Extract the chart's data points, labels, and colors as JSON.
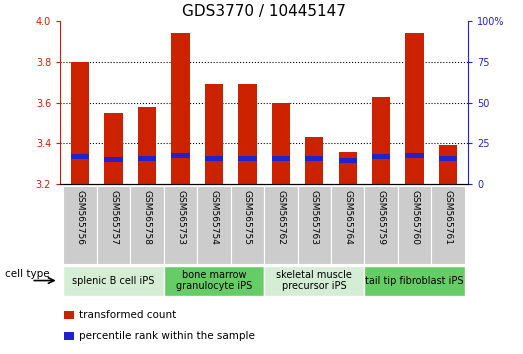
{
  "title": "GDS3770 / 10445147",
  "samples": [
    "GSM565756",
    "GSM565757",
    "GSM565758",
    "GSM565753",
    "GSM565754",
    "GSM565755",
    "GSM565762",
    "GSM565763",
    "GSM565764",
    "GSM565759",
    "GSM565760",
    "GSM565761"
  ],
  "transformed_counts": [
    3.8,
    3.55,
    3.58,
    3.94,
    3.69,
    3.69,
    3.6,
    3.43,
    3.36,
    3.63,
    3.94,
    3.39
  ],
  "percentile_values": [
    3.325,
    3.31,
    3.315,
    3.33,
    3.315,
    3.315,
    3.315,
    3.315,
    3.305,
    3.325,
    3.33,
    3.315
  ],
  "ymin": 3.2,
  "ymax": 4.0,
  "y2min": 0,
  "y2max": 100,
  "yticks": [
    3.2,
    3.4,
    3.6,
    3.8,
    4.0
  ],
  "y2ticks": [
    0,
    25,
    50,
    75,
    100
  ],
  "bar_color": "#cc2200",
  "percentile_color": "#2222cc",
  "cell_type_groups": [
    {
      "label": "splenic B cell iPS",
      "start": 0,
      "end": 3,
      "color": "#d4edd4"
    },
    {
      "label": "bone marrow\ngranulocyte iPS",
      "start": 3,
      "end": 6,
      "color": "#66cc66"
    },
    {
      "label": "skeletal muscle\nprecursor iPS",
      "start": 6,
      "end": 9,
      "color": "#d4edd4"
    },
    {
      "label": "tail tip fibroblast iPS",
      "start": 9,
      "end": 12,
      "color": "#66cc66"
    }
  ],
  "legend_items": [
    {
      "label": "transformed count",
      "color": "#cc2200"
    },
    {
      "label": "percentile rank within the sample",
      "color": "#2222cc"
    }
  ],
  "cell_type_label": "cell type",
  "bar_width": 0.55,
  "tick_label_fontsize": 7,
  "title_fontsize": 11,
  "group_label_fontsize": 7,
  "sample_label_fontsize": 6.5,
  "legend_fontsize": 7.5
}
